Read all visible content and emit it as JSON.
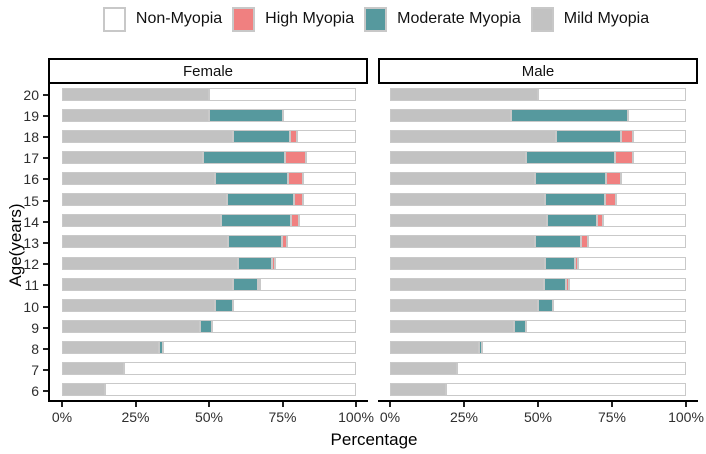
{
  "legend": {
    "items": [
      {
        "label": "Non-Myopia",
        "color": "#FFFFFF"
      },
      {
        "label": "High Myopia",
        "color": "#F08080"
      },
      {
        "label": "Moderate Myopia",
        "color": "#56999E"
      },
      {
        "label": "Mild Myopia",
        "color": "#C2C2C2"
      }
    ]
  },
  "chart_data": {
    "type": "bar",
    "orientation": "horizontal",
    "stacked": true,
    "title": "",
    "xlabel": "Percentage",
    "ylabel": "Age(years)",
    "x_ticks": [
      "0%",
      "25%",
      "50%",
      "75%",
      "100%"
    ],
    "xlim": [
      0,
      100
    ],
    "grid": false,
    "legend_position": "top",
    "segment_order": [
      "mild",
      "moderate",
      "high",
      "non"
    ],
    "segment_labels": {
      "mild": "Mild Myopia",
      "moderate": "Moderate Myopia",
      "high": "High Myopia",
      "non": "Non-Myopia"
    },
    "colors": {
      "mild": "#C2C2C2",
      "moderate": "#56999E",
      "high": "#F08080",
      "non": "#FFFFFF",
      "outline": "#C9C9C9"
    },
    "ages": [
      20,
      19,
      18,
      17,
      16,
      15,
      14,
      13,
      12,
      11,
      10,
      9,
      8,
      7,
      6
    ],
    "panels": [
      {
        "label": "Female",
        "bars": [
          {
            "age": 20,
            "mild": 50,
            "moderate": 0,
            "high": 0,
            "non": 50
          },
          {
            "age": 19,
            "mild": 50,
            "moderate": 25,
            "high": 0,
            "non": 25
          },
          {
            "age": 18,
            "mild": 58,
            "moderate": 19.5,
            "high": 2.5,
            "non": 20
          },
          {
            "age": 17,
            "mild": 48,
            "moderate": 28,
            "high": 7,
            "non": 17
          },
          {
            "age": 16,
            "mild": 52,
            "moderate": 25,
            "high": 5,
            "non": 18
          },
          {
            "age": 15,
            "mild": 56,
            "moderate": 23,
            "high": 3,
            "non": 18
          },
          {
            "age": 14,
            "mild": 54,
            "moderate": 24,
            "high": 2.5,
            "non": 19.5
          },
          {
            "age": 13,
            "mild": 56.5,
            "moderate": 18.5,
            "high": 1.5,
            "non": 23.5
          },
          {
            "age": 12,
            "mild": 60,
            "moderate": 11.5,
            "high": 1,
            "non": 27.5
          },
          {
            "age": 11,
            "mild": 58,
            "moderate": 8.5,
            "high": 1,
            "non": 32.5
          },
          {
            "age": 10,
            "mild": 52,
            "moderate": 6,
            "high": 0,
            "non": 42
          },
          {
            "age": 9,
            "mild": 47,
            "moderate": 4,
            "high": 0,
            "non": 49
          },
          {
            "age": 8,
            "mild": 33,
            "moderate": 1.5,
            "high": 0,
            "non": 65.5
          },
          {
            "age": 7,
            "mild": 21,
            "moderate": 0,
            "high": 0,
            "non": 79
          },
          {
            "age": 6,
            "mild": 14.5,
            "moderate": 0,
            "high": 0,
            "non": 85.5
          }
        ]
      },
      {
        "label": "Male",
        "bars": [
          {
            "age": 20,
            "mild": 50,
            "moderate": 0,
            "high": 0,
            "non": 50
          },
          {
            "age": 19,
            "mild": 41,
            "moderate": 39.5,
            "high": 0,
            "non": 19.5
          },
          {
            "age": 18,
            "mild": 56,
            "moderate": 22,
            "high": 4,
            "non": 18
          },
          {
            "age": 17,
            "mild": 46,
            "moderate": 30,
            "high": 6,
            "non": 18
          },
          {
            "age": 16,
            "mild": 49,
            "moderate": 24,
            "high": 5,
            "non": 22
          },
          {
            "age": 15,
            "mild": 52.5,
            "moderate": 20,
            "high": 4,
            "non": 23.5
          },
          {
            "age": 14,
            "mild": 53,
            "moderate": 17,
            "high": 2,
            "non": 28
          },
          {
            "age": 13,
            "mild": 49,
            "moderate": 15.5,
            "high": 2.5,
            "non": 33
          },
          {
            "age": 12,
            "mild": 52.5,
            "moderate": 10,
            "high": 1,
            "non": 36.5
          },
          {
            "age": 11,
            "mild": 52,
            "moderate": 7.5,
            "high": 1,
            "non": 39.5
          },
          {
            "age": 10,
            "mild": 50,
            "moderate": 5,
            "high": 0,
            "non": 45
          },
          {
            "age": 9,
            "mild": 42,
            "moderate": 4,
            "high": 0,
            "non": 54
          },
          {
            "age": 8,
            "mild": 30,
            "moderate": 1,
            "high": 0,
            "non": 69
          },
          {
            "age": 7,
            "mild": 22.5,
            "moderate": 0,
            "high": 0,
            "non": 77.5
          },
          {
            "age": 6,
            "mild": 19,
            "moderate": 0,
            "high": 0,
            "non": 81
          }
        ]
      }
    ]
  }
}
